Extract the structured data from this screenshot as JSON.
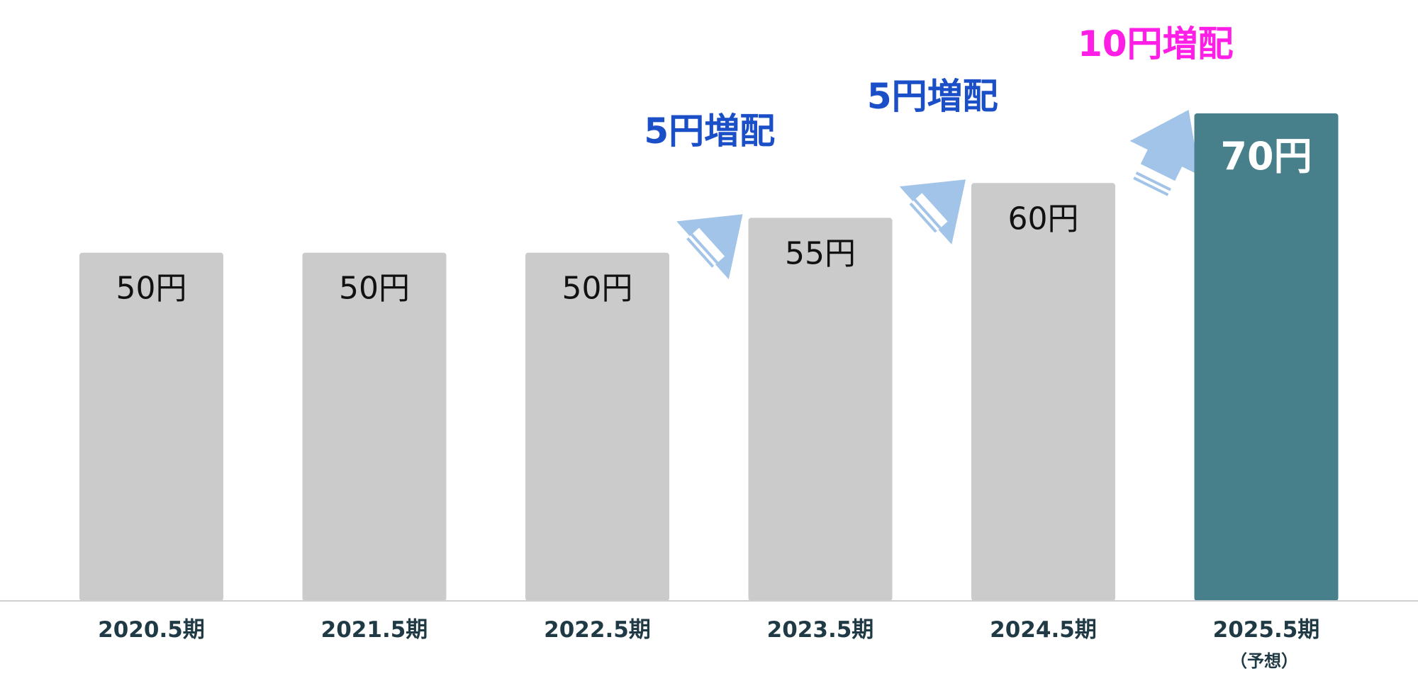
{
  "chart_data": {
    "type": "bar",
    "categories": [
      "2020.5期",
      "2021.5期",
      "2022.5期",
      "2023.5期",
      "2024.5期",
      "2025.5期"
    ],
    "category_notes": [
      "",
      "",
      "",
      "",
      "",
      "（予想）"
    ],
    "values": [
      50,
      50,
      50,
      55,
      60,
      70
    ],
    "value_labels": [
      "50円",
      "50円",
      "50円",
      "55円",
      "60円",
      "70円"
    ],
    "highlight_index": 5,
    "ylim": [
      0,
      70
    ],
    "grid": false,
    "annotations": [
      {
        "text": "5円増配",
        "from_index": 2,
        "to_index": 3,
        "color": "#1a4fc8"
      },
      {
        "text": "5円増配",
        "from_index": 3,
        "to_index": 4,
        "color": "#1a4fc8"
      },
      {
        "text": "10円増配",
        "from_index": 4,
        "to_index": 5,
        "color": "#ff1ee6"
      }
    ],
    "colors": {
      "bar": "#cbcbcb",
      "bar_highlight": "#477f8b",
      "arrow": "#a2c4e8",
      "axis": "#c9cfd2"
    }
  }
}
